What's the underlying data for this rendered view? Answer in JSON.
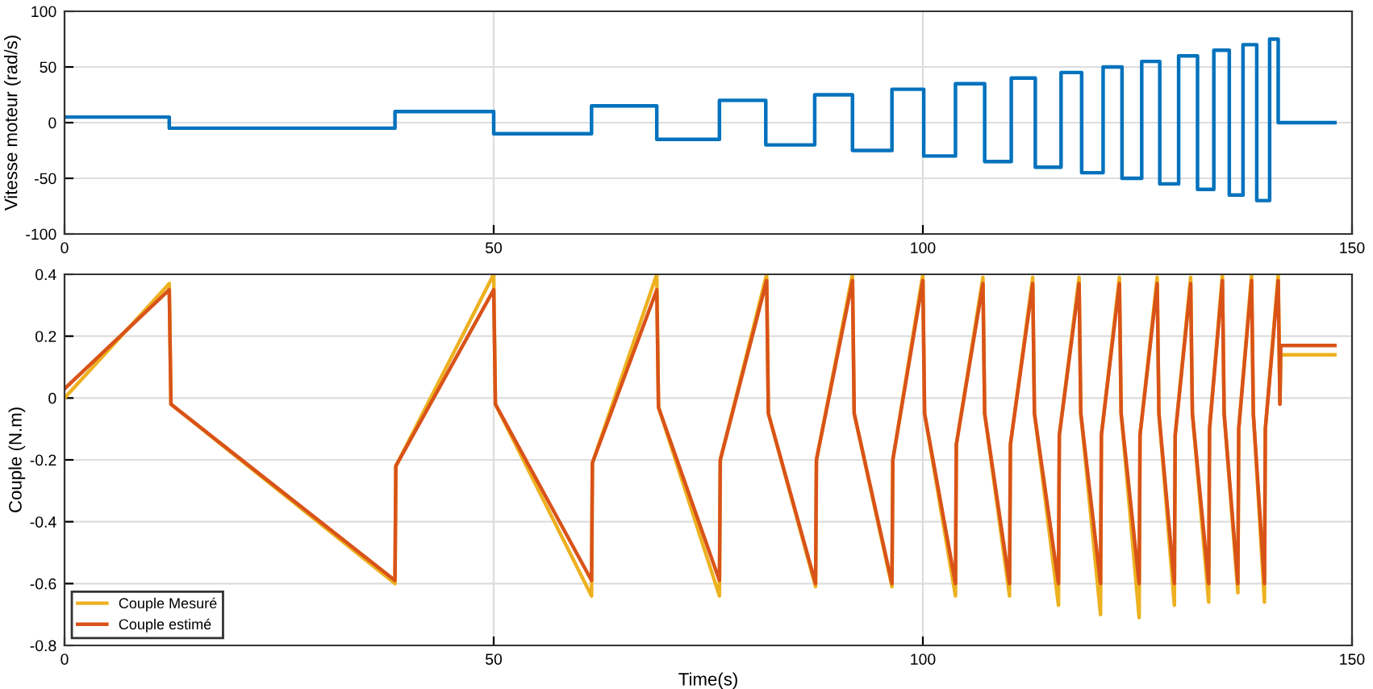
{
  "chart_data": [
    {
      "type": "line",
      "ylabel": "Vitesse moteur (rad/s)",
      "xlim": [
        0,
        150
      ],
      "xticks": [
        0,
        50,
        100,
        150
      ],
      "ylim": [
        -100,
        100
      ],
      "yticks": [
        -100,
        -50,
        0,
        50,
        100
      ],
      "grid": true,
      "legend": false,
      "series": [
        {
          "color": "#0072bd",
          "x": [
            0,
            12.2,
            12.2,
            38.5,
            38.5,
            50,
            50,
            61.4,
            61.4,
            69,
            69,
            76.3,
            76.3,
            81.7,
            81.7,
            87.4,
            87.4,
            91.8,
            91.8,
            96.4,
            96.4,
            100.1,
            100.1,
            103.8,
            103.8,
            107.2,
            107.2,
            110.3,
            110.3,
            113.1,
            113.1,
            116.1,
            116.1,
            118.5,
            118.5,
            121,
            121,
            123.2,
            123.2,
            125.5,
            125.5,
            127.6,
            127.6,
            129.8,
            129.8,
            132,
            132,
            133.9,
            133.9,
            135.7,
            135.7,
            137.3,
            137.3,
            138.9,
            138.9,
            140.4,
            140.4,
            141.4,
            141.4,
            148
          ],
          "values": [
            5,
            5,
            -5,
            -5,
            10,
            10,
            -10,
            -10,
            15,
            15,
            -15,
            -15,
            20,
            20,
            -20,
            -20,
            25,
            25,
            -25,
            -25,
            30,
            30,
            -30,
            -30,
            35,
            35,
            -35,
            -35,
            40,
            40,
            -40,
            -40,
            45,
            45,
            -45,
            -45,
            50,
            50,
            -50,
            -50,
            55,
            55,
            -55,
            -55,
            60,
            60,
            -60,
            -60,
            65,
            65,
            -65,
            -65,
            70,
            70,
            -70,
            -70,
            75,
            75,
            0,
            0
          ]
        }
      ]
    },
    {
      "type": "line",
      "xlabel": "Time(s)",
      "ylabel": "Couple (N.m)",
      "xlim": [
        0,
        150
      ],
      "xticks": [
        0,
        50,
        100,
        150
      ],
      "ylim": [
        -0.8,
        0.4
      ],
      "yticks": [
        -0.8,
        -0.6,
        -0.4,
        -0.2,
        0,
        0.2,
        0.4
      ],
      "grid": true,
      "legend": "bottom left",
      "series": [
        {
          "name": "Couple Mesuré",
          "color": "#edb120",
          "x": [
            0,
            12.2,
            12.4,
            38.5,
            38.6,
            50,
            50.2,
            61.4,
            61.5,
            69,
            69.2,
            76.3,
            76.4,
            81.8,
            82.0,
            87.5,
            87.6,
            91.8,
            92.0,
            96.4,
            96.5,
            100,
            100.2,
            103.8,
            103.9,
            107,
            107.2,
            110.1,
            110.2,
            112.8,
            113.0,
            115.8,
            115.9,
            118.2,
            118.4,
            120.7,
            120.8,
            122.9,
            123.1,
            125.2,
            125.3,
            127.3,
            127.5,
            129.3,
            129.4,
            131.2,
            131.4,
            133.3,
            133.4,
            134.9,
            135.1,
            136.7,
            136.8,
            138.3,
            138.5,
            139.8,
            139.9,
            141.4,
            141.6,
            141.7,
            148
          ],
          "values": [
            0.0,
            0.37,
            -0.02,
            -0.6,
            -0.22,
            0.4,
            -0.02,
            -0.64,
            -0.21,
            0.4,
            -0.03,
            -0.64,
            -0.2,
            0.4,
            -0.05,
            -0.61,
            -0.2,
            0.4,
            -0.05,
            -0.61,
            -0.2,
            0.4,
            -0.05,
            -0.64,
            -0.15,
            0.39,
            -0.05,
            -0.64,
            -0.15,
            0.39,
            -0.05,
            -0.67,
            -0.12,
            0.39,
            -0.05,
            -0.7,
            -0.12,
            0.39,
            -0.05,
            -0.71,
            -0.12,
            0.39,
            -0.05,
            -0.67,
            -0.12,
            0.39,
            -0.05,
            -0.66,
            -0.1,
            0.4,
            -0.05,
            -0.63,
            -0.1,
            0.4,
            -0.05,
            -0.66,
            -0.1,
            0.4,
            -0.02,
            0.14,
            0.14
          ]
        },
        {
          "name": "Couple estimé",
          "color": "#d95319",
          "x": [
            0,
            12.2,
            12.4,
            38.5,
            38.6,
            50,
            50.2,
            61.4,
            61.5,
            69,
            69.2,
            76.3,
            76.4,
            81.8,
            82.0,
            87.5,
            87.6,
            91.8,
            92.0,
            96.4,
            96.5,
            100,
            100.2,
            103.8,
            103.9,
            107,
            107.2,
            110.1,
            110.2,
            112.8,
            113.0,
            115.8,
            115.9,
            118.2,
            118.4,
            120.7,
            120.8,
            122.9,
            123.1,
            125.2,
            125.3,
            127.3,
            127.5,
            129.3,
            129.4,
            131.2,
            131.4,
            133.3,
            133.4,
            134.9,
            135.1,
            136.7,
            136.8,
            138.3,
            138.5,
            139.8,
            139.9,
            141.4,
            141.6,
            141.7,
            148
          ],
          "values": [
            0.03,
            0.35,
            -0.02,
            -0.59,
            -0.22,
            0.35,
            -0.02,
            -0.59,
            -0.21,
            0.35,
            -0.03,
            -0.59,
            -0.2,
            0.38,
            -0.05,
            -0.6,
            -0.2,
            0.38,
            -0.05,
            -0.6,
            -0.2,
            0.38,
            -0.05,
            -0.6,
            -0.15,
            0.37,
            -0.05,
            -0.6,
            -0.15,
            0.37,
            -0.05,
            -0.6,
            -0.12,
            0.37,
            -0.05,
            -0.6,
            -0.12,
            0.37,
            -0.05,
            -0.6,
            -0.12,
            0.37,
            -0.05,
            -0.6,
            -0.12,
            0.37,
            -0.05,
            -0.6,
            -0.1,
            0.38,
            -0.05,
            -0.6,
            -0.1,
            0.38,
            -0.05,
            -0.6,
            -0.1,
            0.38,
            -0.02,
            0.17,
            0.17
          ]
        }
      ]
    }
  ]
}
